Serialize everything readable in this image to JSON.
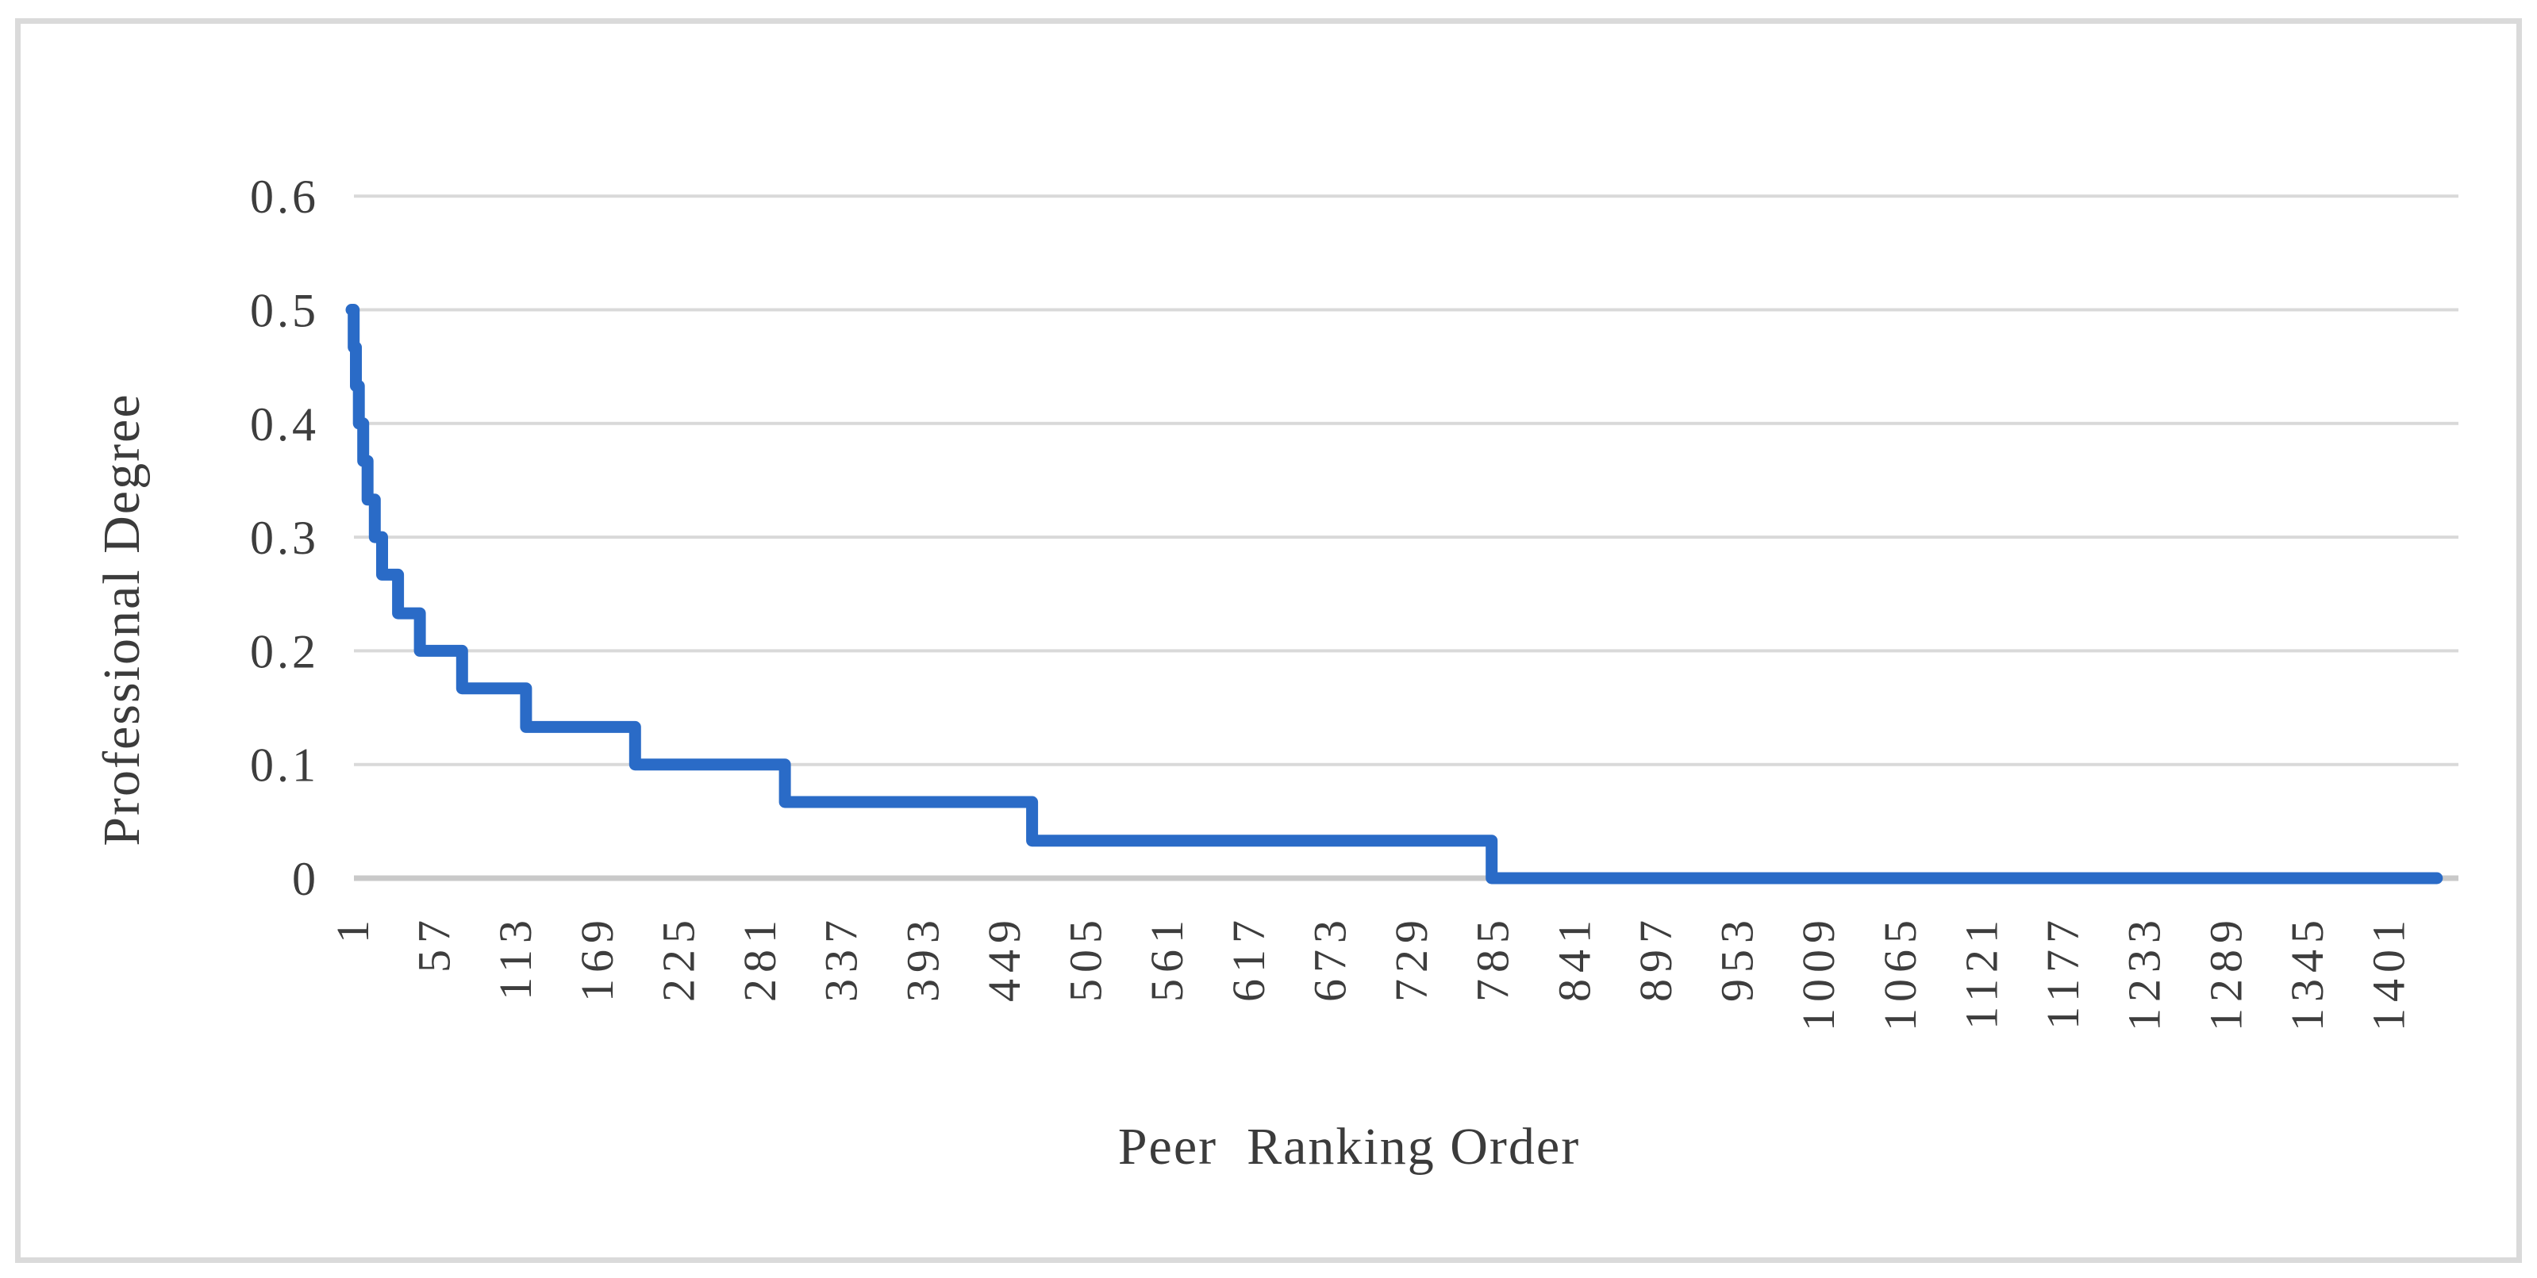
{
  "figure": {
    "background_color": "#ffffff",
    "border_color": "#dadada",
    "text_color": "#3b3b3b"
  },
  "chart_data": {
    "type": "line",
    "subtype": "step",
    "title": "",
    "xlabel": "Peer  Ranking Order",
    "ylabel": "Professional Degree",
    "legend": "none",
    "grid": "horizontal",
    "xlim": [
      1,
      1435
    ],
    "ylim": [
      0,
      0.6
    ],
    "x_tick_interval": 56,
    "x_tick_labels": [
      "1",
      "57",
      "113",
      "169",
      "225",
      "281",
      "337",
      "393",
      "449",
      "505",
      "561",
      "617",
      "673",
      "729",
      "785",
      "841",
      "897",
      "953",
      "1009",
      "1065",
      "1121",
      "1177",
      "1233",
      "1289",
      "1345",
      "1401"
    ],
    "x_tick_values": [
      1,
      57,
      113,
      169,
      225,
      281,
      337,
      393,
      449,
      505,
      561,
      617,
      673,
      729,
      785,
      841,
      897,
      953,
      1009,
      1065,
      1121,
      1177,
      1233,
      1289,
      1345,
      1401
    ],
    "y_tick_labels": [
      "0.6",
      "0.5",
      "0.4",
      "0.3",
      "0.2",
      "0.1",
      "0"
    ],
    "y_tick_values": [
      0.6,
      0.5,
      0.4,
      0.3,
      0.2,
      0.1,
      0
    ],
    "line_color": "#2a6bc7",
    "gridline_color": "#d9d9d9",
    "axis_line_color": "#c9c9c9",
    "tick_text_color": "#3d3d3d",
    "series": [
      {
        "name": "Professional Degree",
        "steps": [
          {
            "x1": 1,
            "x2": 2.5,
            "v": 0.5
          },
          {
            "x1": 2.5,
            "x2": 4,
            "v": 0.467
          },
          {
            "x1": 4,
            "x2": 6,
            "v": 0.433
          },
          {
            "x1": 6,
            "x2": 9,
            "v": 0.4
          },
          {
            "x1": 9,
            "x2": 12,
            "v": 0.367
          },
          {
            "x1": 12,
            "x2": 17,
            "v": 0.333
          },
          {
            "x1": 17,
            "x2": 22,
            "v": 0.3
          },
          {
            "x1": 22,
            "x2": 33,
            "v": 0.267
          },
          {
            "x1": 33,
            "x2": 48,
            "v": 0.233
          },
          {
            "x1": 48,
            "x2": 77,
            "v": 0.2
          },
          {
            "x1": 77,
            "x2": 121,
            "v": 0.167
          },
          {
            "x1": 121,
            "x2": 196,
            "v": 0.133
          },
          {
            "x1": 196,
            "x2": 299,
            "v": 0.1
          },
          {
            "x1": 299,
            "x2": 469,
            "v": 0.067
          },
          {
            "x1": 469,
            "x2": 785,
            "v": 0.033
          },
          {
            "x1": 785,
            "x2": 1435,
            "v": 0
          }
        ]
      }
    ]
  }
}
